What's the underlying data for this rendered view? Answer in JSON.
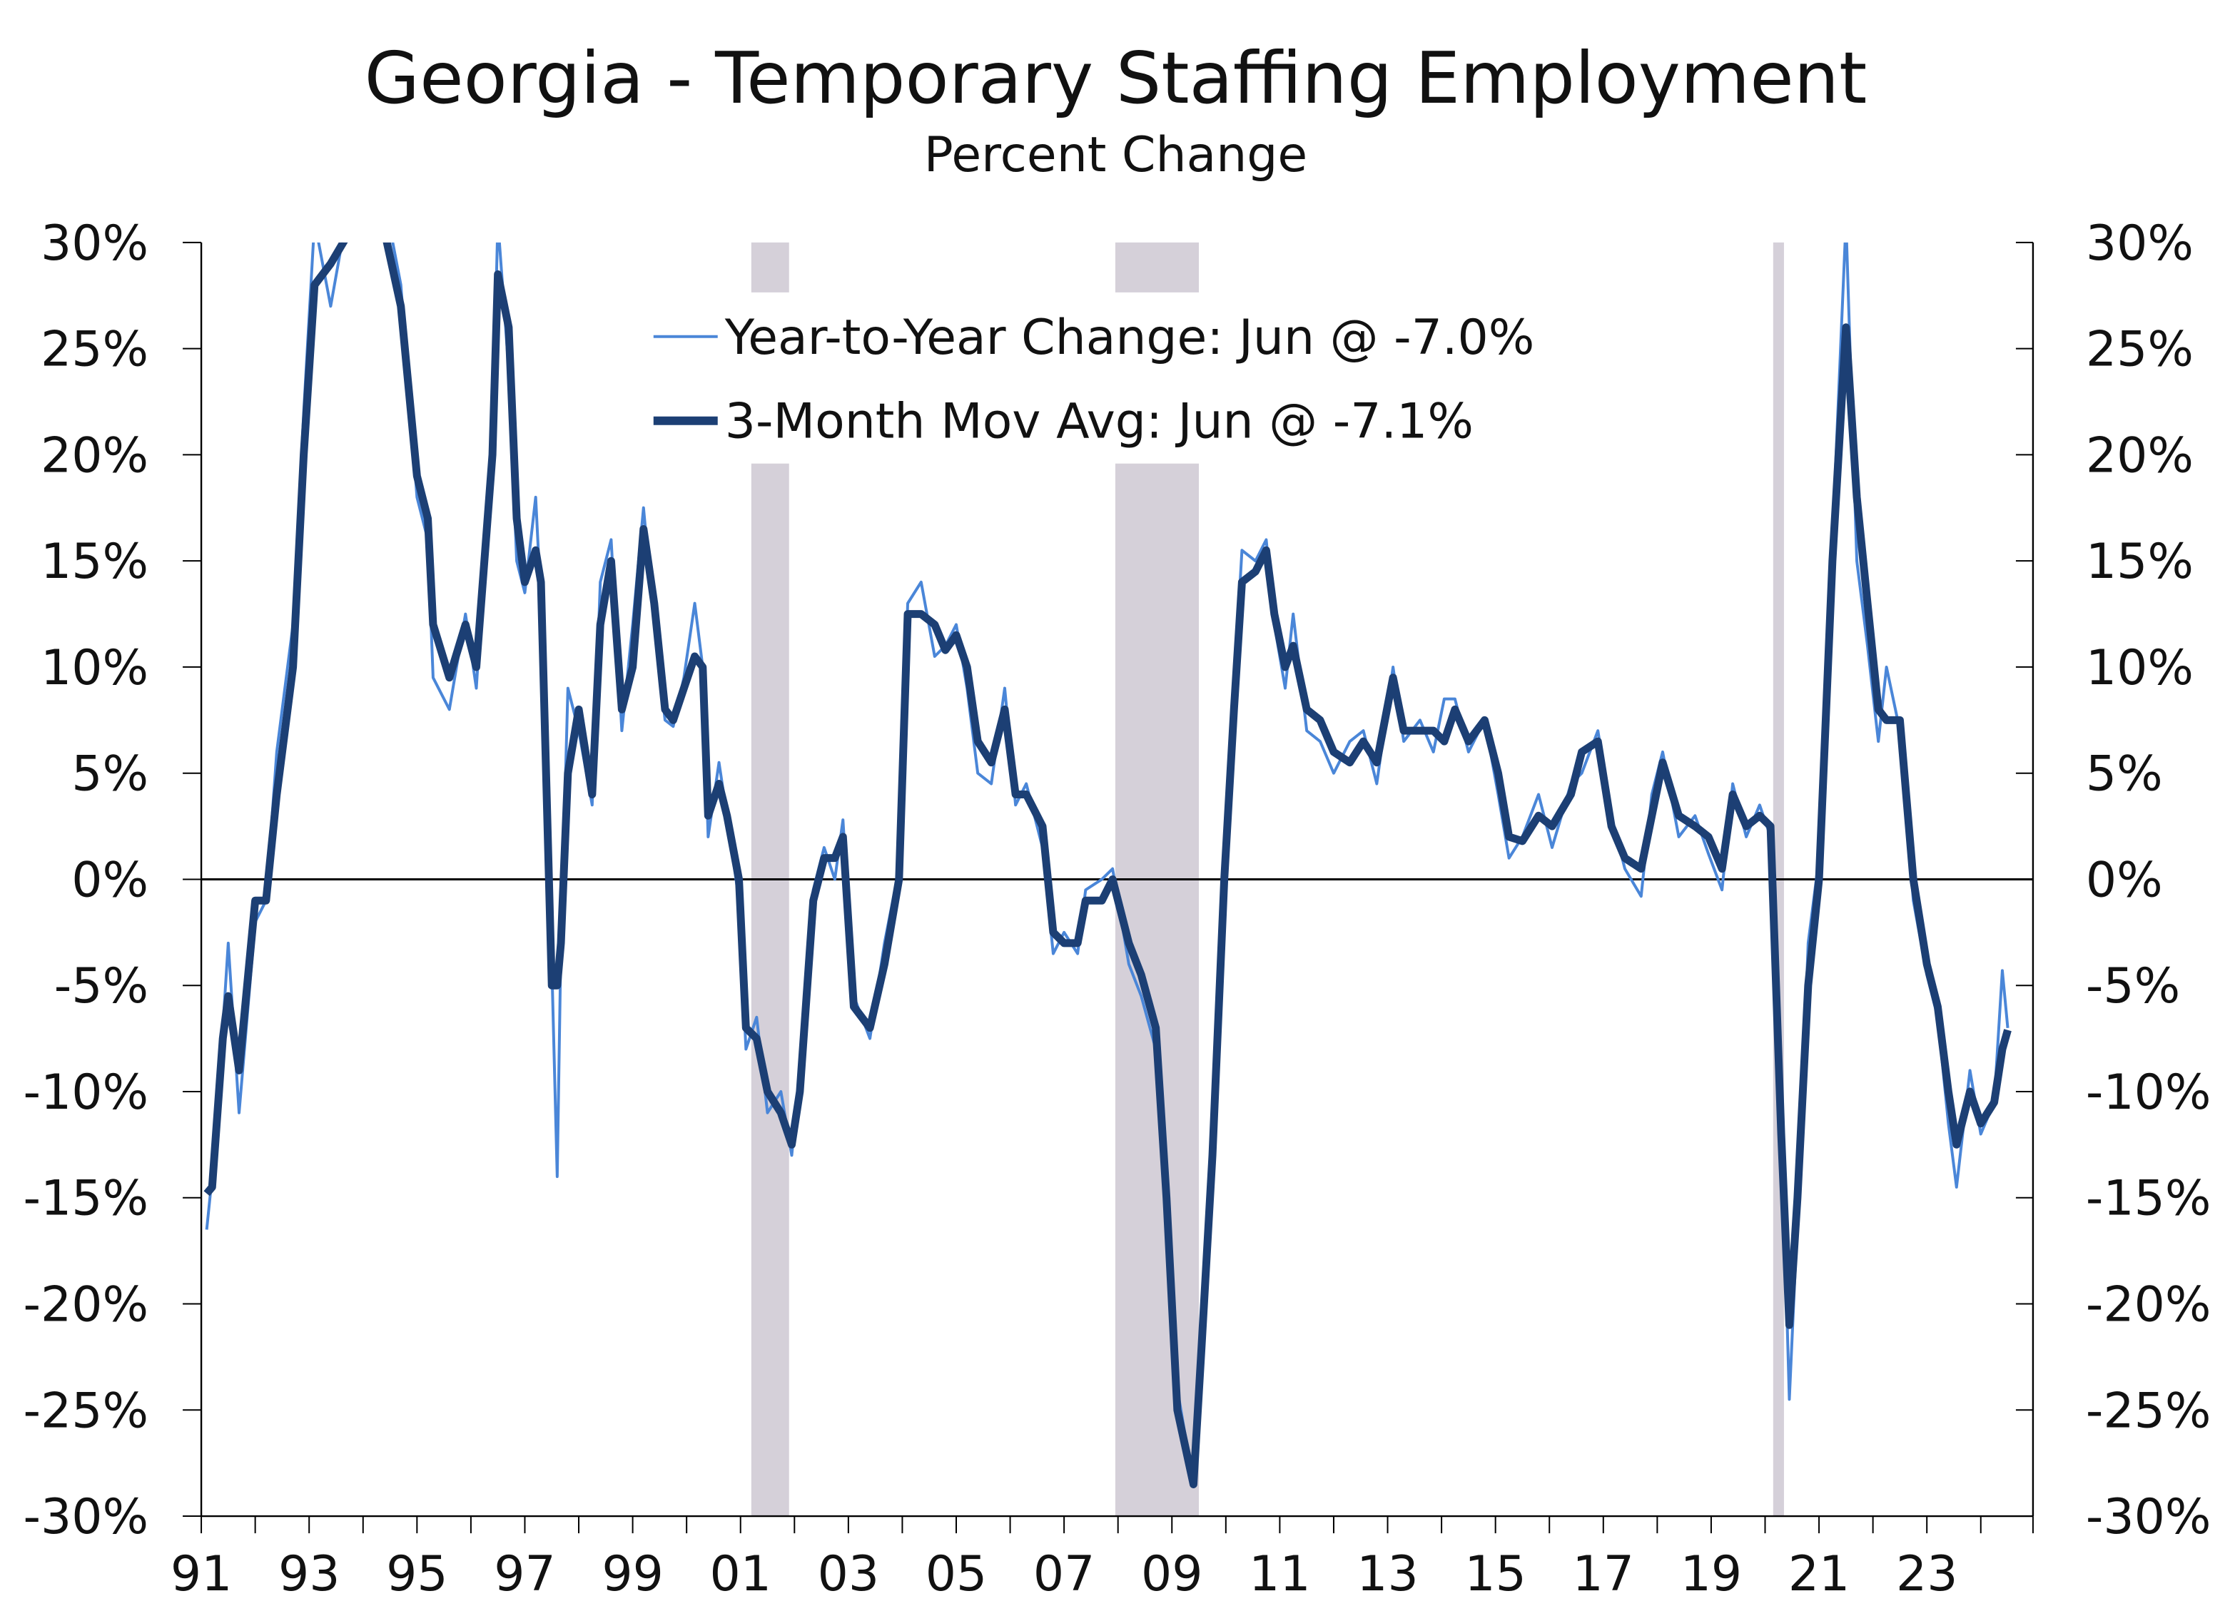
{
  "chart_data": {
    "type": "line",
    "title": "Georgia - Temporary Staffing Employment",
    "subtitle": "Percent Change",
    "xlabel": "",
    "ylabel": "",
    "ylim": [
      -30,
      30
    ],
    "xlim": [
      1991,
      2024.75
    ],
    "yticks": [
      30,
      25,
      20,
      15,
      10,
      5,
      0,
      -5,
      -10,
      -15,
      -20,
      -25,
      -30
    ],
    "ytick_labels": [
      "30%",
      "25%",
      "20%",
      "15%",
      "10%",
      "5%",
      "0%",
      "-5%",
      "-10%",
      "-15%",
      "-20%",
      "-25%",
      "-30%"
    ],
    "xtick_labels": [
      "91",
      "93",
      "95",
      "97",
      "99",
      "01",
      "03",
      "05",
      "07",
      "09",
      "11",
      "13",
      "15",
      "17",
      "19",
      "21",
      "23"
    ],
    "grid": false,
    "legend_placement": "top-center",
    "recessions": [
      [
        2001.2,
        2001.9
      ],
      [
        2007.95,
        2009.5
      ],
      [
        2020.15,
        2020.35
      ]
    ],
    "colors": {
      "yoy": "#4a86d8",
      "mma": "#1c3f74",
      "recession": "#d5d0d9",
      "zero": "#000000"
    },
    "x": [
      1991.1,
      1991.2,
      1991.4,
      1991.5,
      1991.7,
      1992.0,
      1992.2,
      1992.4,
      1992.7,
      1992.9,
      1993.1,
      1993.4,
      1993.75,
      1994.4,
      1994.7,
      1995.0,
      1995.2,
      1995.3,
      1995.6,
      1995.9,
      1996.1,
      1996.4,
      1996.5,
      1996.7,
      1996.85,
      1997.0,
      1997.2,
      1997.3,
      1997.5,
      1997.6,
      1997.67,
      1997.8,
      1998.0,
      1998.25,
      1998.4,
      1998.6,
      1998.8,
      1999.0,
      1999.2,
      1999.4,
      1999.6,
      1999.75,
      1999.95,
      2000.15,
      2000.3,
      2000.4,
      2000.6,
      2000.75,
      2000.97,
      2001.1,
      2001.3,
      2001.5,
      2001.75,
      2001.95,
      2002.1,
      2002.35,
      2002.55,
      2002.75,
      2002.9,
      2003.1,
      2003.4,
      2003.67,
      2003.94,
      2004.1,
      2004.35,
      2004.6,
      2004.8,
      2005.0,
      2005.2,
      2005.4,
      2005.65,
      2005.9,
      2006.1,
      2006.3,
      2006.6,
      2006.8,
      2007.0,
      2007.25,
      2007.4,
      2007.7,
      2007.9,
      2008.2,
      2008.43,
      2008.7,
      2008.9,
      2009.1,
      2009.4,
      2009.55,
      2009.75,
      2009.97,
      2010.15,
      2010.3,
      2010.55,
      2010.75,
      2010.9,
      2011.1,
      2011.25,
      2011.5,
      2011.75,
      2012.0,
      2012.3,
      2012.55,
      2012.8,
      2013.1,
      2013.3,
      2013.6,
      2013.85,
      2014.05,
      2014.25,
      2014.5,
      2014.8,
      2015.05,
      2015.25,
      2015.5,
      2015.8,
      2016.05,
      2016.4,
      2016.6,
      2016.9,
      2017.15,
      2017.4,
      2017.7,
      2017.9,
      2018.1,
      2018.4,
      2018.7,
      2018.95,
      2019.2,
      2019.4,
      2019.65,
      2019.9,
      2020.1,
      2020.3,
      2020.45,
      2020.6,
      2020.8,
      2021.0,
      2021.25,
      2021.5,
      2021.7,
      2021.9,
      2022.1,
      2022.25,
      2022.5,
      2022.75,
      2023.0,
      2023.2,
      2023.4,
      2023.55,
      2023.8,
      2024.0,
      2024.25,
      2024.4,
      2024.5
    ],
    "series": [
      {
        "name": "Year-to-Year Change: Jun @ -7.0%",
        "values": [
          -16.5,
          -14,
          -7,
          -3,
          -11,
          -2,
          -1,
          6,
          12,
          22,
          31,
          27,
          32,
          32,
          28,
          18,
          16,
          9.5,
          8,
          12.5,
          9,
          21,
          31,
          24,
          15,
          13.5,
          18,
          13,
          -4,
          -14,
          -3,
          9,
          7,
          3.5,
          14,
          16,
          7,
          12,
          17.5,
          12,
          7.5,
          7.2,
          9.5,
          13,
          10,
          2,
          5.5,
          3,
          -1,
          -8,
          -6.5,
          -11,
          -10,
          -13,
          -9,
          -0.5,
          1.5,
          0,
          2.8,
          -5.5,
          -7.5,
          -3,
          0.5,
          13,
          14,
          10.5,
          11,
          12,
          9,
          5,
          4.5,
          9,
          3.5,
          4.5,
          1.5,
          -3.5,
          -2.5,
          -3.5,
          -0.5,
          0,
          0.5,
          -4,
          -5.5,
          -8,
          -16,
          -24,
          -28.5,
          -21.5,
          -11,
          1,
          9,
          15.5,
          15,
          16,
          12,
          9,
          12.5,
          7,
          6.5,
          5,
          6.5,
          7,
          4.5,
          10,
          6.5,
          7.5,
          6,
          8.5,
          8.5,
          6,
          7.5,
          4,
          1,
          2,
          4,
          1.5,
          4.5,
          5,
          7,
          3,
          0.5,
          -0.8,
          4,
          6,
          2,
          3,
          1.2,
          -0.5,
          4.5,
          2,
          3.5,
          2,
          -11,
          -24.5,
          -16,
          -3,
          1,
          16,
          31,
          15,
          11,
          6.5,
          10,
          7,
          -1,
          -4.5,
          -6.5,
          -11.5,
          -14.5,
          -9,
          -12,
          -10.5,
          -4.3,
          -7.0
        ]
      },
      {
        "name": "3-Month Mov Avg: Jun @ -7.1%",
        "values": [
          -14.8,
          -14.5,
          -7.5,
          -5.5,
          -9,
          -1,
          -1,
          4,
          10,
          20,
          28,
          29,
          30.5,
          30.5,
          27,
          19,
          17,
          12,
          9.5,
          12,
          10,
          20,
          28.5,
          26,
          17,
          14,
          15.5,
          14,
          -5,
          -5,
          -3,
          5,
          8,
          4,
          12,
          15,
          8,
          10,
          16.5,
          13,
          8,
          7.5,
          9,
          10.5,
          10,
          3,
          4.5,
          3,
          0,
          -7,
          -7.5,
          -10,
          -11,
          -12.5,
          -10,
          -1,
          1,
          1,
          2,
          -6,
          -7,
          -4,
          0,
          12.5,
          12.5,
          12,
          10.8,
          11.5,
          10,
          6.5,
          5.5,
          8,
          4,
          4,
          2.5,
          -2.5,
          -3,
          -3,
          -1,
          -1,
          0,
          -3,
          -4.5,
          -7,
          -15,
          -25,
          -28.5,
          -22,
          -13,
          0,
          8,
          14,
          14.5,
          15.5,
          12.5,
          10,
          11,
          8,
          7.5,
          6,
          5.5,
          6.5,
          5.5,
          9.5,
          7,
          7,
          7,
          6.5,
          8,
          6.5,
          7.5,
          5,
          2,
          1.8,
          3,
          2.5,
          4,
          6,
          6.5,
          2.5,
          1,
          0.5,
          3,
          5.5,
          3,
          2.5,
          2,
          0.5,
          4,
          2.5,
          3,
          2.5,
          -12,
          -21,
          -15,
          -5,
          0,
          15,
          26,
          18,
          13,
          8,
          7.5,
          7.5,
          0,
          -4,
          -6,
          -10,
          -12.5,
          -10,
          -11.5,
          -10.5,
          -8,
          -7.1
        ]
      }
    ]
  }
}
